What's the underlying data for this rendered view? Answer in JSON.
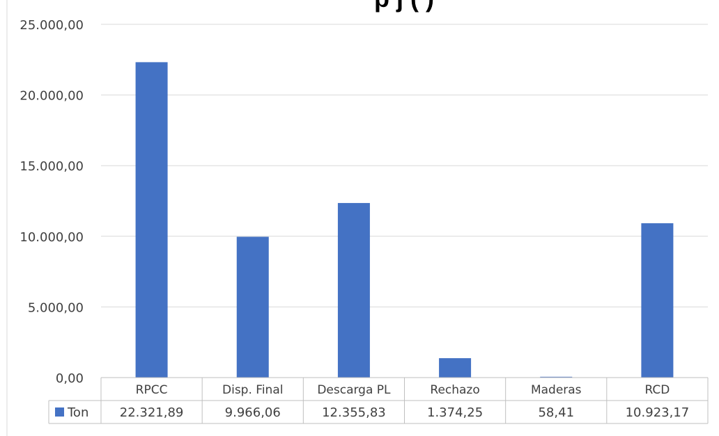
{
  "chart_data": {
    "type": "bar",
    "title": "",
    "title_visible_fragment": "p                 j   (         )",
    "categories": [
      "RPCC",
      "Disp. Final",
      "Descarga PL",
      "Rechazo",
      "Maderas",
      "RCD"
    ],
    "series": [
      {
        "name": "Ton",
        "color": "#4472C4",
        "values": [
          22321.89,
          9966.06,
          12355.83,
          1374.25,
          58.41,
          10923.17
        ],
        "value_labels": [
          "22.321,89",
          "9.966,06",
          "12.355,83",
          "1.374,25",
          "58,41",
          "10.923,17"
        ]
      }
    ],
    "ylim": [
      0,
      25000
    ],
    "yticks": [
      0,
      5000,
      10000,
      15000,
      20000,
      25000
    ],
    "ytick_labels": [
      "0,00",
      "5.000,00",
      "10.000,00",
      "15.000,00",
      "20.000,00",
      "25.000,00"
    ],
    "grid": true,
    "legend": "data-table",
    "xlabel": "",
    "ylabel": ""
  }
}
